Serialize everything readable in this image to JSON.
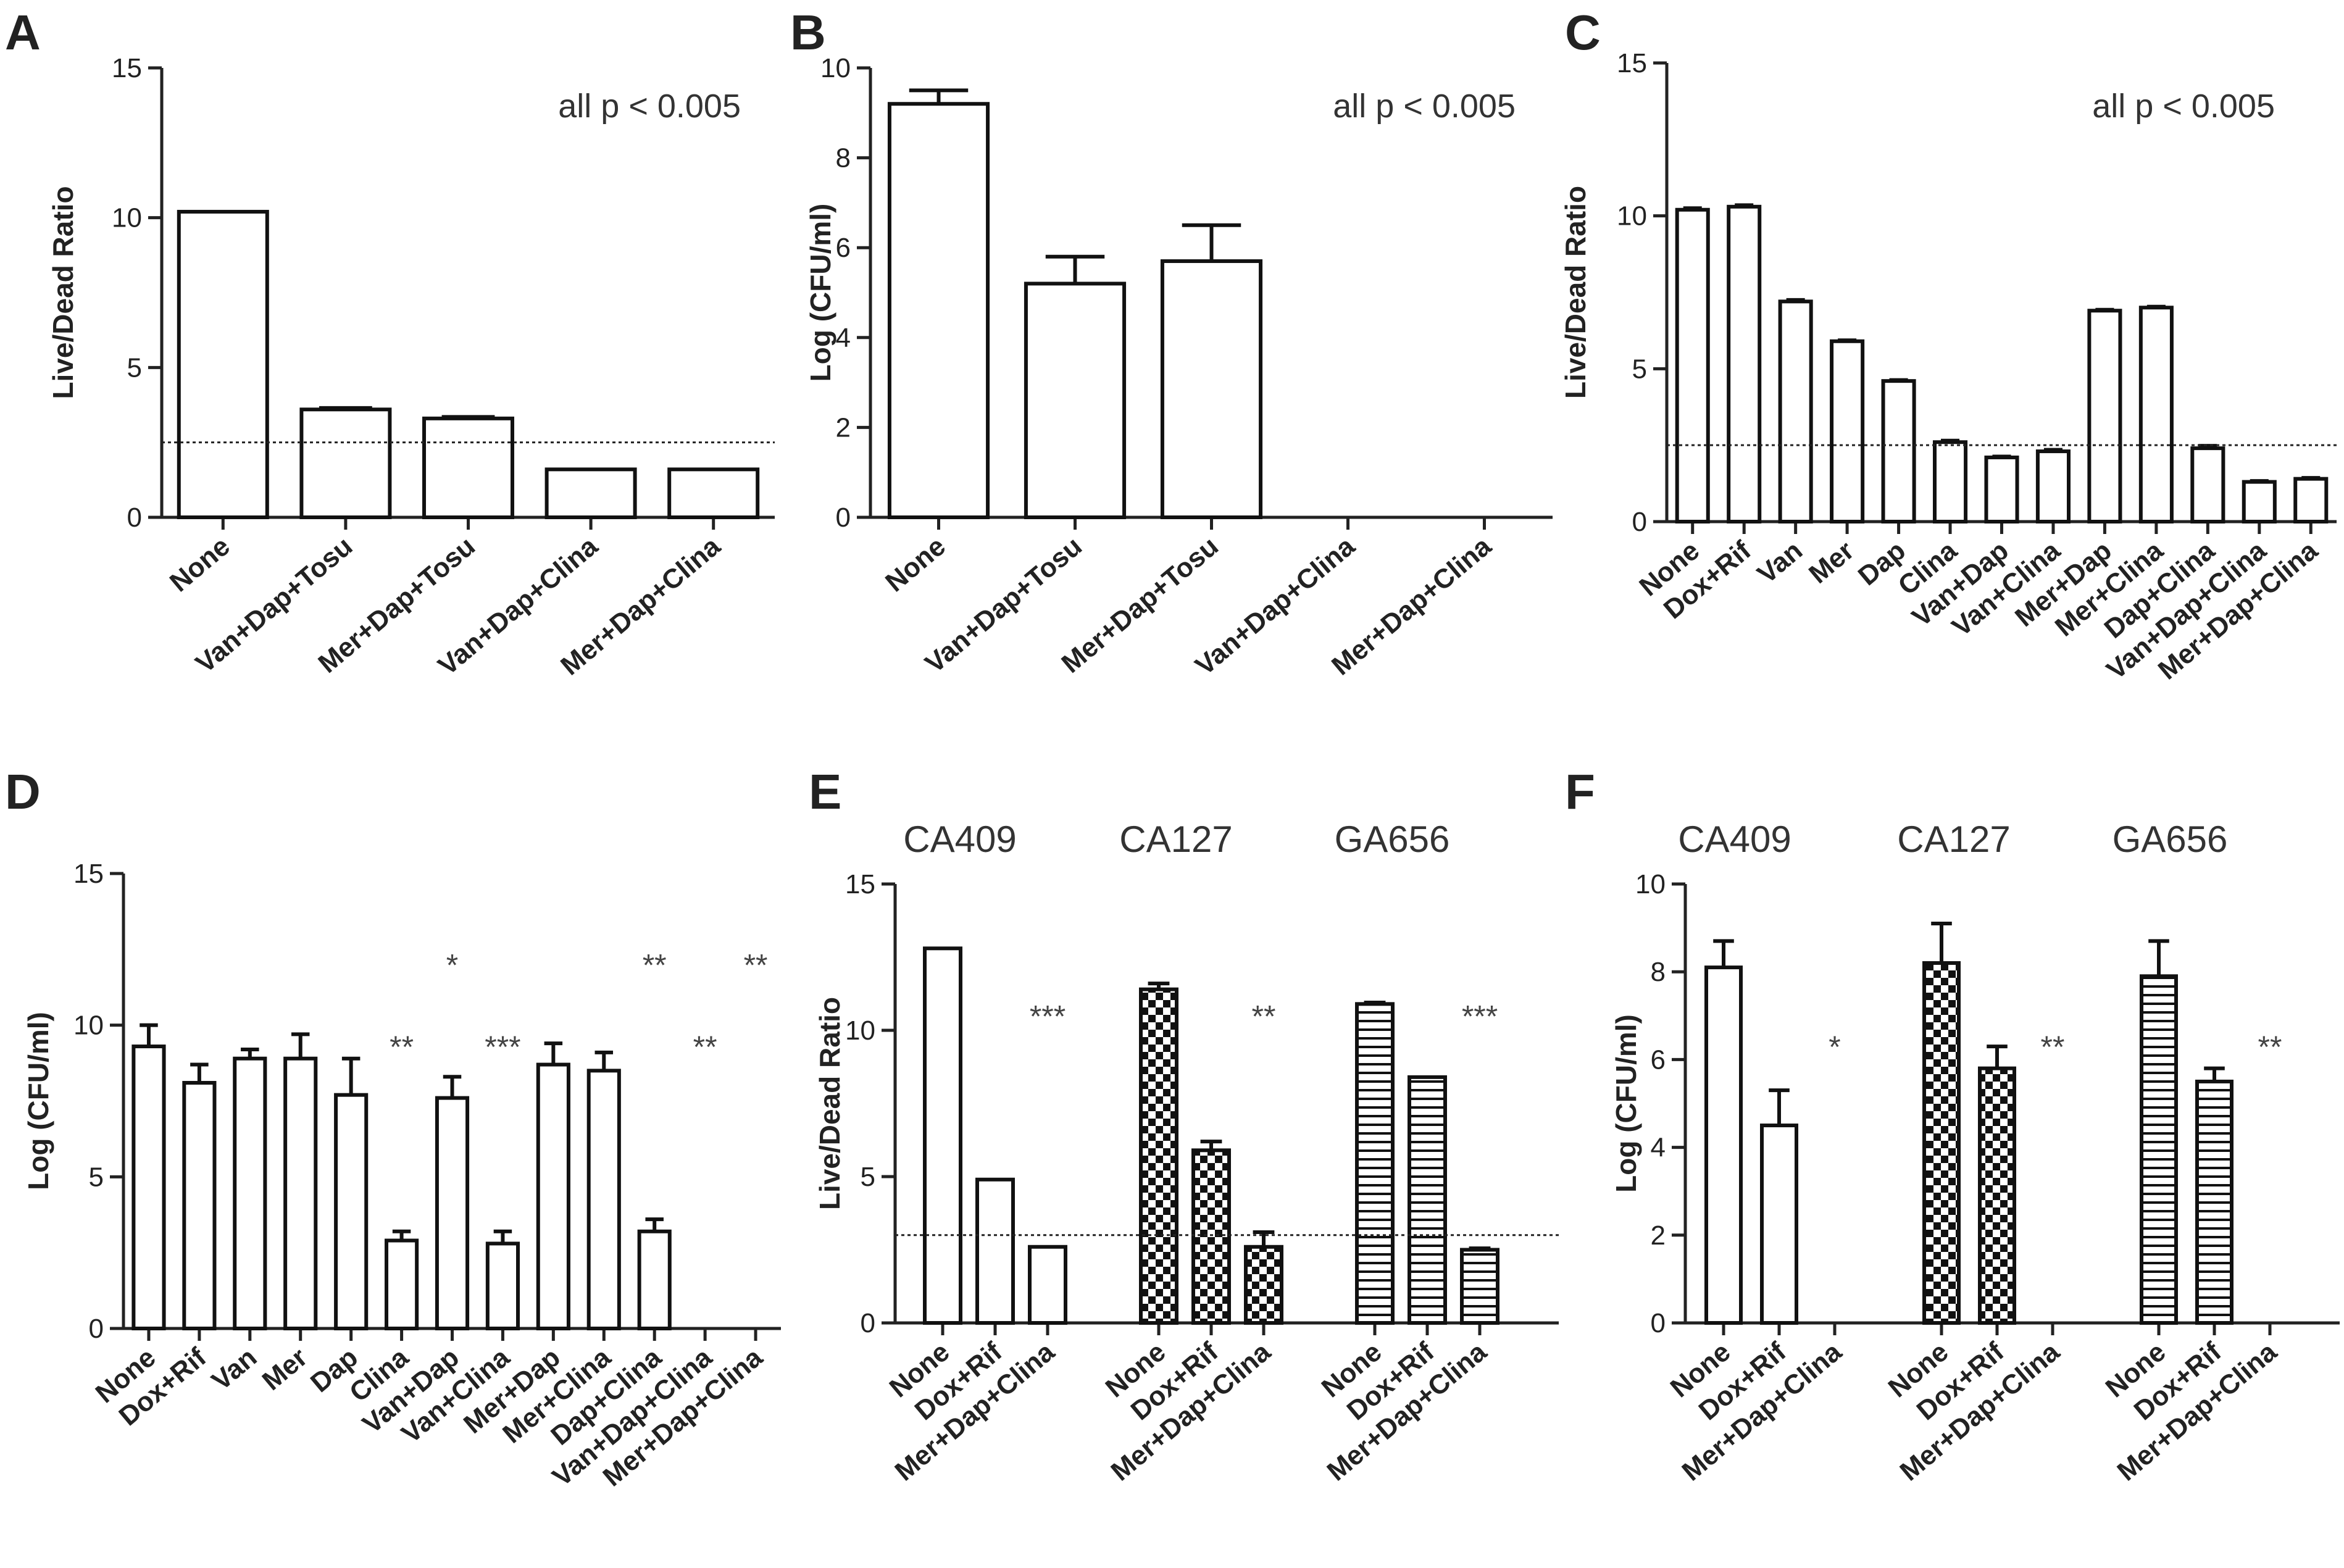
{
  "chart_data": [
    {
      "panel": "A",
      "type": "bar",
      "ylabel": "Live/Dead Ratio",
      "ylim": [
        0,
        15
      ],
      "yticks": [
        0,
        5,
        10,
        15
      ],
      "categories": [
        "None",
        "Van+Dap+Tosu",
        "Mer+Dap+Tosu",
        "Van+Dap+Clina",
        "Mer+Dap+Clina"
      ],
      "values": [
        10.2,
        3.6,
        3.3,
        1.6,
        1.6
      ],
      "errors": [
        0,
        0.05,
        0.05,
        0,
        0
      ],
      "fills": [
        "white",
        "white",
        "white",
        "white",
        "white"
      ],
      "threshold": 2.5,
      "annotation": "all p < 0.005"
    },
    {
      "panel": "B",
      "type": "bar",
      "ylabel": "Log (CFU/ml)",
      "ylim": [
        0,
        10
      ],
      "yticks": [
        0,
        2,
        4,
        6,
        8,
        10
      ],
      "categories": [
        "None",
        "Van+Dap+Tosu",
        "Mer+Dap+Tosu",
        "Van+Dap+Clina",
        "Mer+Dap+Clina"
      ],
      "values": [
        9.2,
        5.2,
        5.7,
        0,
        0
      ],
      "errors": [
        0.3,
        0.6,
        0.8,
        0,
        0
      ],
      "fills": [
        "white",
        "white",
        "white",
        "white",
        "white"
      ],
      "annotation": "all p < 0.005"
    },
    {
      "panel": "C",
      "type": "bar",
      "ylabel": "Live/Dead Ratio",
      "ylim": [
        0,
        15
      ],
      "yticks": [
        0,
        5,
        10,
        15
      ],
      "categories": [
        "None",
        "Dox+Rif",
        "Van",
        "Mer",
        "Dap",
        "Clina",
        "Van+Dap",
        "Van+Clina",
        "Mer+Dap",
        "Mer+Clina",
        "Dap+Clina",
        "Van+Dap+Clina",
        "Mer+Dap+Clina"
      ],
      "values": [
        10.2,
        10.3,
        7.2,
        5.9,
        4.6,
        2.6,
        2.1,
        2.3,
        6.9,
        7.0,
        2.4,
        1.3,
        1.4
      ],
      "errors": [
        0.05,
        0.05,
        0.05,
        0.03,
        0.03,
        0.05,
        0.03,
        0.05,
        0.03,
        0.03,
        0.08,
        0.03,
        0.03
      ],
      "fills": [
        "white",
        "white",
        "white",
        "white",
        "white",
        "white",
        "white",
        "white",
        "white",
        "white",
        "white",
        "white",
        "white"
      ],
      "threshold": 2.5,
      "annotation": "all p < 0.005"
    },
    {
      "panel": "D",
      "type": "bar",
      "ylabel": "Log (CFU/ml)",
      "ylim": [
        0,
        15
      ],
      "yticks": [
        0,
        5,
        10,
        15
      ],
      "categories": [
        "None",
        "Dox+Rif",
        "Van",
        "Mer",
        "Dap",
        "Clina",
        "Van+Dap",
        "Van+Clina",
        "Mer+Dap",
        "Mer+Clina",
        "Dap+Clina",
        "Van+Dap+Clina",
        "Mer+Dap+Clina"
      ],
      "values": [
        9.3,
        8.1,
        8.9,
        8.9,
        7.7,
        2.9,
        7.6,
        2.8,
        8.7,
        8.5,
        3.2,
        0,
        0
      ],
      "errors": [
        0.7,
        0.6,
        0.3,
        0.8,
        1.2,
        0.3,
        0.7,
        0.4,
        0.7,
        0.6,
        0.4,
        0,
        0
      ],
      "fills": [
        "white",
        "white",
        "white",
        "white",
        "white",
        "white",
        "white",
        "white",
        "white",
        "white",
        "white",
        "white",
        "white"
      ],
      "significance": [
        {
          "label": "**",
          "index": 5,
          "y": 9.3
        },
        {
          "label": "*",
          "index": 6,
          "y": 12.0
        },
        {
          "label": "***",
          "index": 7,
          "y": 9.3
        },
        {
          "label": "**",
          "index": 10,
          "y": 12.0
        },
        {
          "label": "**",
          "index": 11,
          "y": 9.3
        },
        {
          "label": "**",
          "index": 12,
          "y": 12.0
        }
      ]
    },
    {
      "panel": "E",
      "type": "bar",
      "ylabel": "Live/Dead Ratio",
      "ylim": [
        0,
        15
      ],
      "yticks": [
        0,
        5,
        10,
        15
      ],
      "groups": [
        "CA409",
        "CA127",
        "GA656"
      ],
      "categories": [
        "None",
        "Dox+Rif",
        "Mer+Dap+Clina",
        "None",
        "Dox+Rif",
        "Mer+Dap+Clina",
        "None",
        "Dox+Rif",
        "Mer+Dap+Clina"
      ],
      "values": [
        12.8,
        4.9,
        2.6,
        11.4,
        5.9,
        2.6,
        10.9,
        8.4,
        2.5
      ],
      "errors": [
        0,
        0,
        0,
        0.2,
        0.3,
        0.5,
        0.05,
        0,
        0.05
      ],
      "fills": [
        "white",
        "white",
        "white",
        "checker",
        "checker",
        "checker",
        "hlines",
        "hlines",
        "hlines"
      ],
      "threshold": 3.0,
      "significance": [
        {
          "label": "***",
          "index": 2,
          "y": 10.5
        },
        {
          "label": "**",
          "index": 5,
          "y": 10.5
        },
        {
          "label": "***",
          "index": 8,
          "y": 10.5
        }
      ]
    },
    {
      "panel": "F",
      "type": "bar",
      "ylabel": "Log (CFU/ml)",
      "ylim": [
        0,
        10
      ],
      "yticks": [
        0,
        2,
        4,
        6,
        8,
        10
      ],
      "groups": [
        "CA409",
        "CA127",
        "GA656"
      ],
      "categories": [
        "None",
        "Dox+Rif",
        "Mer+Dap+Clina",
        "None",
        "Dox+Rif",
        "Mer+Dap+Clina",
        "None",
        "Dox+Rif",
        "Mer+Dap+Clina"
      ],
      "values": [
        8.1,
        4.5,
        0,
        8.2,
        5.8,
        0,
        7.9,
        5.5,
        0
      ],
      "errors": [
        0.6,
        0.8,
        0,
        0.9,
        0.5,
        0,
        0.8,
        0.3,
        0
      ],
      "fills": [
        "white",
        "white",
        "white",
        "checker",
        "checker",
        "checker",
        "hlines",
        "hlines",
        "hlines"
      ],
      "significance": [
        {
          "label": "*",
          "index": 2,
          "y": 6.3
        },
        {
          "label": "**",
          "index": 5,
          "y": 6.3
        },
        {
          "label": "**",
          "index": 8,
          "y": 6.3
        }
      ]
    }
  ]
}
